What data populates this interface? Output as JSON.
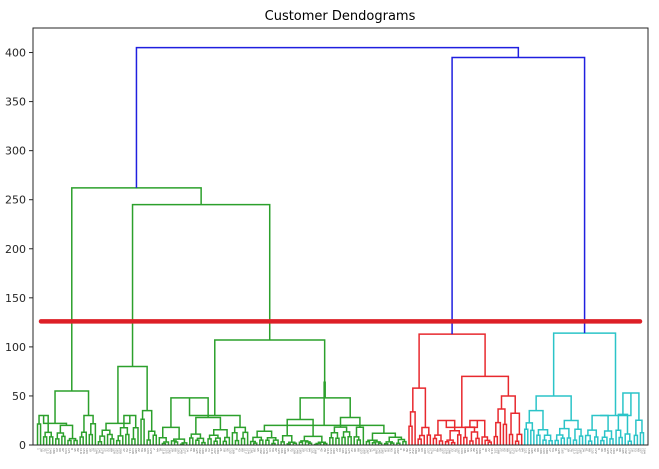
{
  "chart_data": {
    "type": "dendrogram",
    "title": "Customer Dendograms",
    "xlabel": "",
    "ylabel": "",
    "ylim": [
      0,
      425
    ],
    "yticks": [
      0,
      50,
      100,
      150,
      200,
      250,
      300,
      350,
      400
    ],
    "grid": false,
    "cutoff_line": {
      "y": 126,
      "color": "#dd1f26"
    },
    "colors": {
      "root": "#1f1fdf",
      "cluster_1": "#2ca02c",
      "cluster_2": "#e8292e",
      "cluster_3": "#2bc4c8",
      "axis": "#262626"
    },
    "leaf_count": 200,
    "clusters": [
      {
        "name": "",
        "color_key": "cluster_1",
        "leaf_range": [
          0,
          122
        ],
        "merges": [
          {
            "height": 405,
            "joins": "all clusters"
          },
          {
            "height": 262,
            "joins": "cluster 1 main"
          },
          {
            "height": 245,
            "joins": "cluster 1 right"
          },
          {
            "height": 107,
            "joins": "cluster 1 right sub"
          },
          {
            "height": 64,
            "joins": "cluster 1 right-right"
          },
          {
            "height": 55,
            "joins": "cluster 1 left"
          },
          {
            "height": 80,
            "joins": "cluster 1 mid-left"
          }
        ]
      },
      {
        "name": "",
        "color_key": "cluster_2",
        "leaf_range": [
          122,
          160
        ],
        "merges": [
          {
            "height": 395,
            "joins": "cluster 2 + cluster 3"
          },
          {
            "height": 113,
            "joins": "cluster 2 main"
          },
          {
            "height": 70,
            "joins": "cluster 2 right"
          },
          {
            "height": 58,
            "joins": "cluster 2 left"
          }
        ]
      },
      {
        "name": "",
        "color_key": "cluster_3",
        "leaf_range": [
          160,
          200
        ],
        "merges": [
          {
            "height": 114,
            "joins": "cluster 3 main"
          },
          {
            "height": 53,
            "joins": "cluster 3 right"
          },
          {
            "height": 50,
            "joins": "cluster 3 left"
          }
        ]
      }
    ]
  }
}
